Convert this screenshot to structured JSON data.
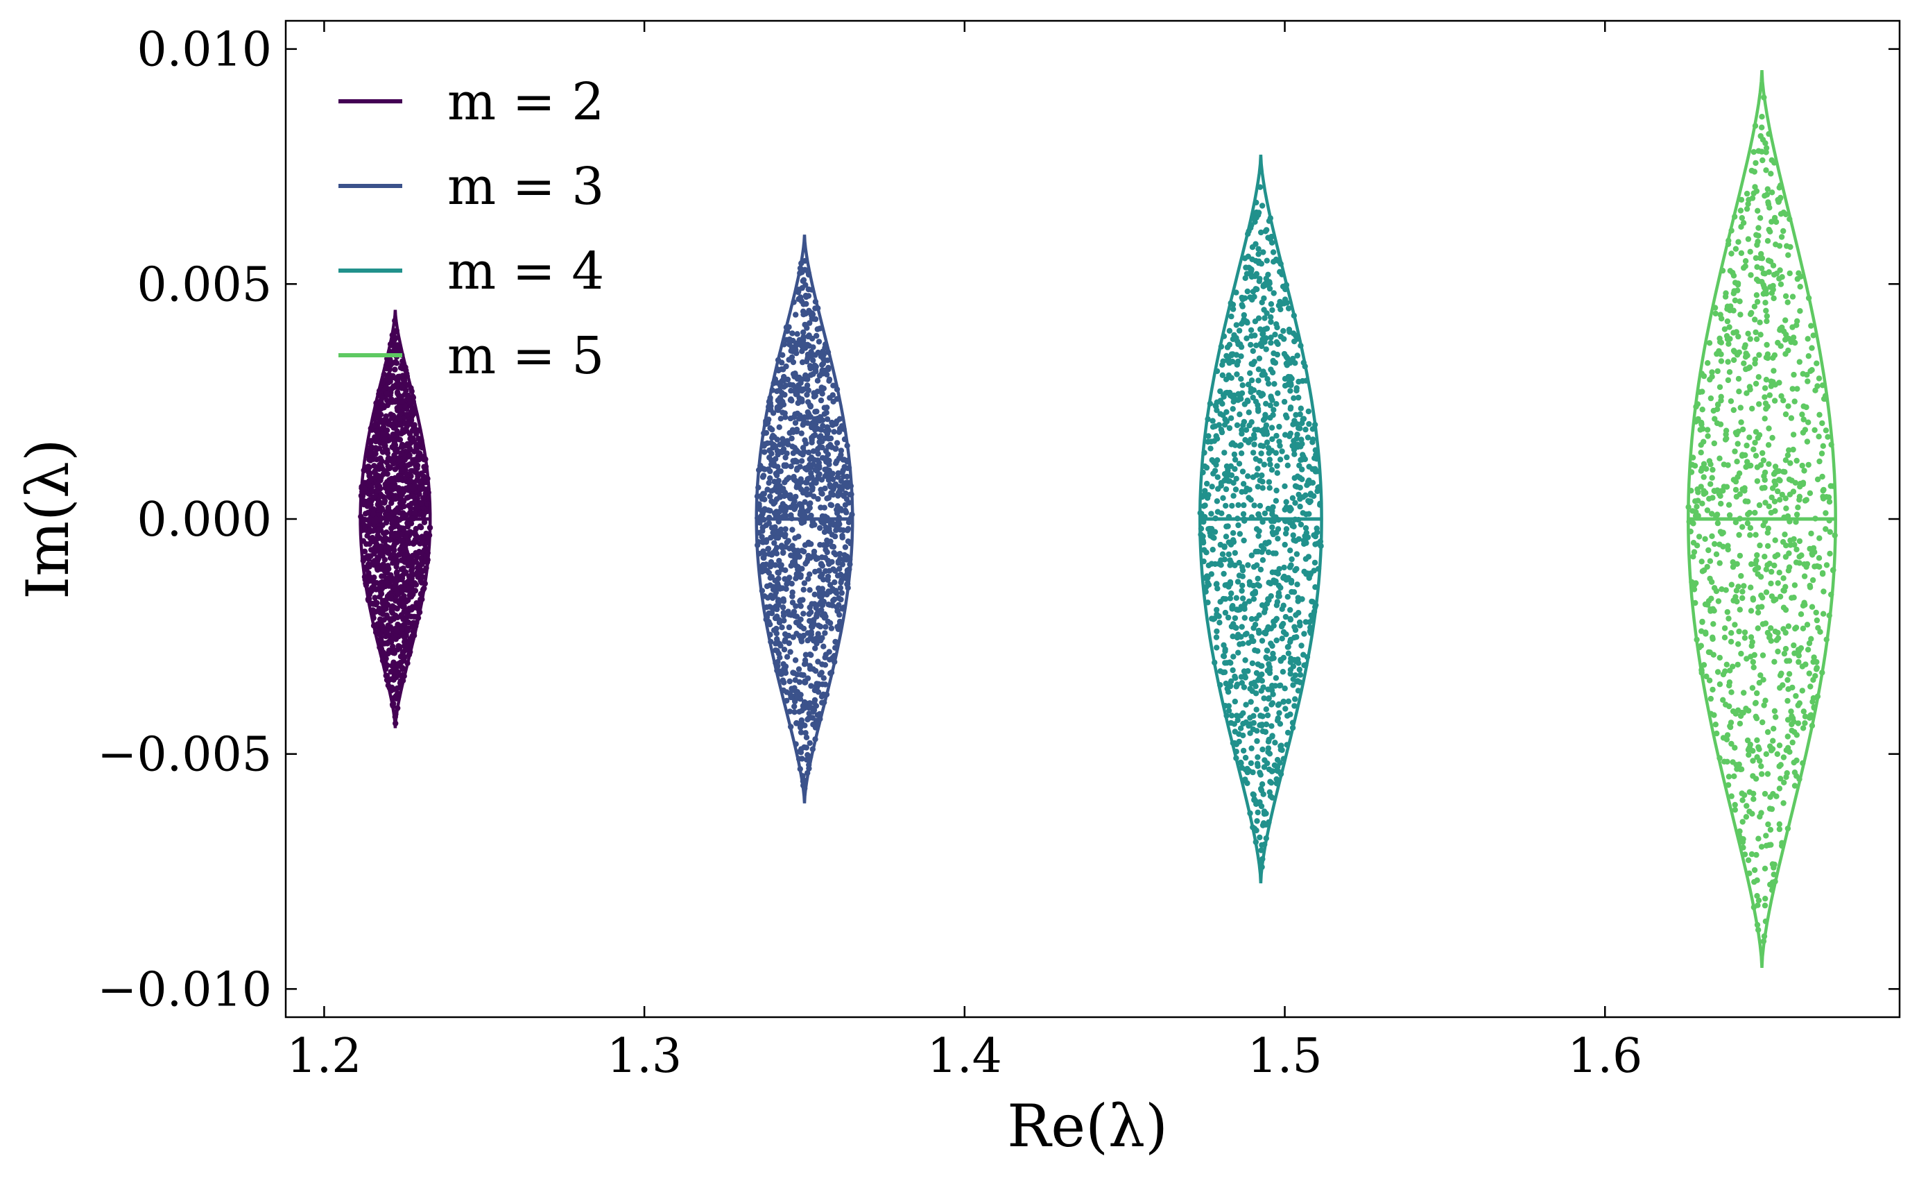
{
  "chart_data": {
    "type": "scatter",
    "title": "",
    "xlabel": "Re(λ)",
    "ylabel": "Im(λ)",
    "xlim": [
      1.188,
      1.692
    ],
    "ylim": [
      -0.0106,
      0.0106
    ],
    "x_ticks": [
      1.2,
      1.3,
      1.4,
      1.5,
      1.6
    ],
    "x_tick_labels": [
      "1.2",
      "1.3",
      "1.4",
      "1.5",
      "1.6"
    ],
    "y_ticks": [
      -0.01,
      -0.005,
      0.0,
      0.005,
      0.01
    ],
    "y_tick_labels": [
      "−0.010",
      "−0.005",
      "0.000",
      "0.005",
      "0.010"
    ],
    "grid": false,
    "legend_position": "top-left",
    "series": [
      {
        "name": "m = 2",
        "color": "#440154",
        "center_re": 1.2222,
        "half_width_re": 0.0109,
        "max_im": 0.00445,
        "scatter_count": 1400
      },
      {
        "name": "m = 3",
        "color": "#3b528b",
        "center_re": 1.35,
        "half_width_re": 0.015,
        "max_im": 0.00605,
        "scatter_count": 1250
      },
      {
        "name": "m = 4",
        "color": "#21918c",
        "center_re": 1.4925,
        "half_width_re": 0.019,
        "max_im": 0.00775,
        "scatter_count": 1150
      },
      {
        "name": "m = 5",
        "color": "#5ec962",
        "center_re": 1.649,
        "half_width_re": 0.023,
        "max_im": 0.00955,
        "scatter_count": 1000
      }
    ]
  }
}
